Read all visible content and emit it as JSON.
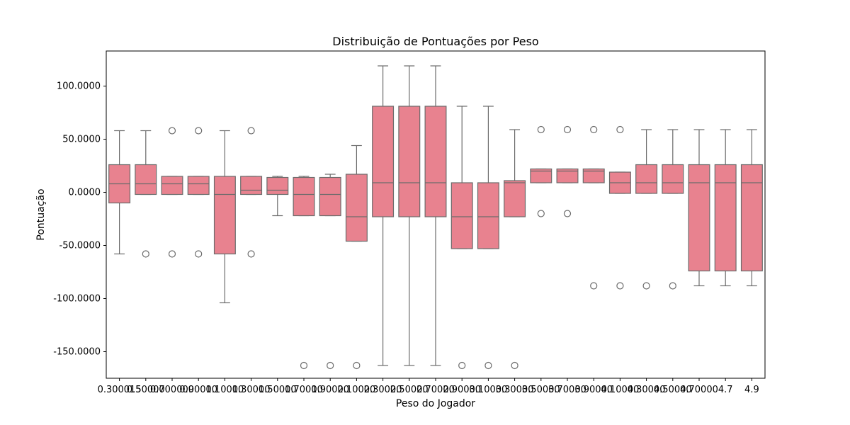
{
  "chart_data": {
    "type": "box",
    "title": "Distribuição de Pontuações por Peso",
    "xlabel": "Peso do Jogador",
    "ylabel": "Pontuação",
    "ylim": [
      -175,
      133
    ],
    "yticks": [
      {
        "value": 100,
        "label": "100.0000"
      },
      {
        "value": 50,
        "label": "50.0000"
      },
      {
        "value": 0,
        "label": "0.0000"
      },
      {
        "value": -50,
        "label": "-50.0000"
      },
      {
        "value": -100,
        "label": "-100.0000"
      },
      {
        "value": -150,
        "label": "-150.0000"
      }
    ],
    "categories": [
      "0.300015",
      "0.50000",
      "0.700000",
      "0.90000",
      "1.10000",
      "1.30000",
      "1.50000",
      "1.70000",
      "1.90000",
      "2.10000",
      "2.30000",
      "2.50000",
      "2.70000",
      "2.90000",
      "3.10000",
      "3.30000",
      "3.50000",
      "3.70000",
      "3.90000",
      "4.10000",
      "4.30000",
      "4.50000",
      "4.70000",
      "4.7",
      "4.9"
    ],
    "box_color": "#e8828f",
    "line_color": "#6b6b6b",
    "boxes": [
      {
        "q1": -10,
        "median": 8,
        "q3": 26,
        "whisker_low": -58,
        "whisker_high": 58,
        "outliers": []
      },
      {
        "q1": -2,
        "median": 8,
        "q3": 26,
        "whisker_low": -2,
        "whisker_high": 58,
        "outliers": [
          -58
        ]
      },
      {
        "q1": -2,
        "median": 8,
        "q3": 15,
        "whisker_low": -2,
        "whisker_high": 15,
        "outliers": [
          58,
          -58
        ]
      },
      {
        "q1": -2,
        "median": 8,
        "q3": 15,
        "whisker_low": -2,
        "whisker_high": 15,
        "outliers": [
          58,
          -58
        ]
      },
      {
        "q1": -58,
        "median": -2,
        "q3": 15,
        "whisker_low": -104,
        "whisker_high": 58,
        "outliers": []
      },
      {
        "q1": -2,
        "median": 2,
        "q3": 15,
        "whisker_low": -2,
        "whisker_high": 15,
        "outliers": [
          58,
          -58
        ]
      },
      {
        "q1": -2,
        "median": 2,
        "q3": 14,
        "whisker_low": -22,
        "whisker_high": 15,
        "outliers": []
      },
      {
        "q1": -22,
        "median": -2,
        "q3": 14,
        "whisker_low": -22,
        "whisker_high": 15,
        "outliers": [
          -163
        ]
      },
      {
        "q1": -22,
        "median": -2,
        "q3": 14,
        "whisker_low": -22,
        "whisker_high": 17,
        "outliers": [
          -163
        ]
      },
      {
        "q1": -46,
        "median": -23,
        "q3": 17,
        "whisker_low": -46,
        "whisker_high": 44,
        "outliers": [
          -163
        ]
      },
      {
        "q1": -23,
        "median": 9,
        "q3": 81,
        "whisker_low": -163,
        "whisker_high": 119,
        "outliers": []
      },
      {
        "q1": -23,
        "median": 9,
        "q3": 81,
        "whisker_low": -163,
        "whisker_high": 119,
        "outliers": []
      },
      {
        "q1": -23,
        "median": 9,
        "q3": 81,
        "whisker_low": -163,
        "whisker_high": 119,
        "outliers": []
      },
      {
        "q1": -53,
        "median": -23,
        "q3": 9,
        "whisker_low": -53,
        "whisker_high": 81,
        "outliers": [
          -163
        ]
      },
      {
        "q1": -53,
        "median": -23,
        "q3": 9,
        "whisker_low": -53,
        "whisker_high": 81,
        "outliers": [
          -163
        ]
      },
      {
        "q1": -23,
        "median": 9,
        "q3": 11,
        "whisker_low": -23,
        "whisker_high": 59,
        "outliers": [
          -163
        ]
      },
      {
        "q1": 9,
        "median": 20,
        "q3": 22,
        "whisker_low": 9,
        "whisker_high": 22,
        "outliers": [
          59,
          -20
        ]
      },
      {
        "q1": 9,
        "median": 20,
        "q3": 22,
        "whisker_low": 9,
        "whisker_high": 22,
        "outliers": [
          59,
          -20
        ]
      },
      {
        "q1": 9,
        "median": 20,
        "q3": 22,
        "whisker_low": 9,
        "whisker_high": 22,
        "outliers": [
          59,
          -88
        ]
      },
      {
        "q1": -1,
        "median": 9,
        "q3": 19,
        "whisker_low": -1,
        "whisker_high": 19,
        "outliers": [
          59,
          -88
        ]
      },
      {
        "q1": -1,
        "median": 9,
        "q3": 26,
        "whisker_low": -1,
        "whisker_high": 59,
        "outliers": [
          -88
        ]
      },
      {
        "q1": -1,
        "median": 9,
        "q3": 26,
        "whisker_low": -1,
        "whisker_high": 59,
        "outliers": [
          -88
        ]
      },
      {
        "q1": -74,
        "median": 9,
        "q3": 26,
        "whisker_low": -88,
        "whisker_high": 59,
        "outliers": []
      },
      {
        "q1": -74,
        "median": 9,
        "q3": 26,
        "whisker_low": -88,
        "whisker_high": 59,
        "outliers": []
      },
      {
        "q1": -74,
        "median": 9,
        "q3": 26,
        "whisker_low": -88,
        "whisker_high": 59,
        "outliers": []
      }
    ],
    "grid": false,
    "legend": "none"
  }
}
